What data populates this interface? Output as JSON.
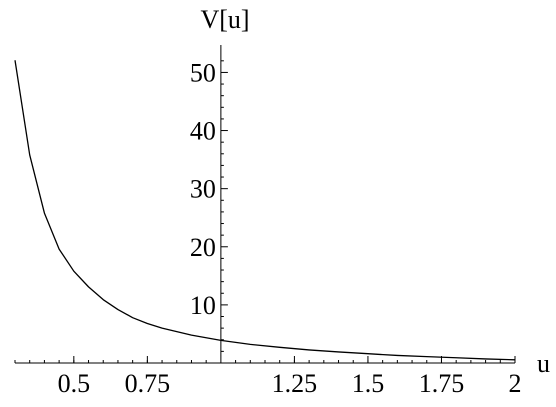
{
  "chart_data": {
    "type": "line",
    "title": "",
    "xlabel": "u",
    "ylabel": "V[u]",
    "xlim": [
      0.3,
      2.0
    ],
    "ylim": [
      0,
      53
    ],
    "x_axis_crosses_y_at": 1.0,
    "x_major_ticks": [
      0.5,
      0.75,
      1.25,
      1.5,
      1.75,
      2
    ],
    "x_major_tick_labels": [
      "0.5",
      "0.75",
      "1.25",
      "1.5",
      "1.75",
      "2"
    ],
    "y_major_ticks": [
      10,
      20,
      30,
      40,
      50
    ],
    "y_major_tick_labels": [
      "10",
      "20",
      "30",
      "40",
      "50"
    ],
    "grid": false,
    "legend": "none",
    "line_color": "#000000",
    "series": [
      {
        "x": [
          0.3,
          0.35,
          0.4,
          0.45,
          0.5,
          0.55,
          0.6,
          0.65,
          0.7,
          0.75,
          0.8,
          0.9,
          1.0,
          1.1,
          1.2,
          1.3,
          1.4,
          1.5,
          1.6,
          1.7,
          1.8,
          1.9,
          2.0
        ],
        "y": [
          52.1,
          35.8,
          25.8,
          19.6,
          15.8,
          13.1,
          10.9,
          9.2,
          7.8,
          6.8,
          6.0,
          4.8,
          3.9,
          3.2,
          2.7,
          2.25,
          1.9,
          1.6,
          1.3,
          1.1,
          0.9,
          0.7,
          0.55
        ]
      }
    ]
  }
}
